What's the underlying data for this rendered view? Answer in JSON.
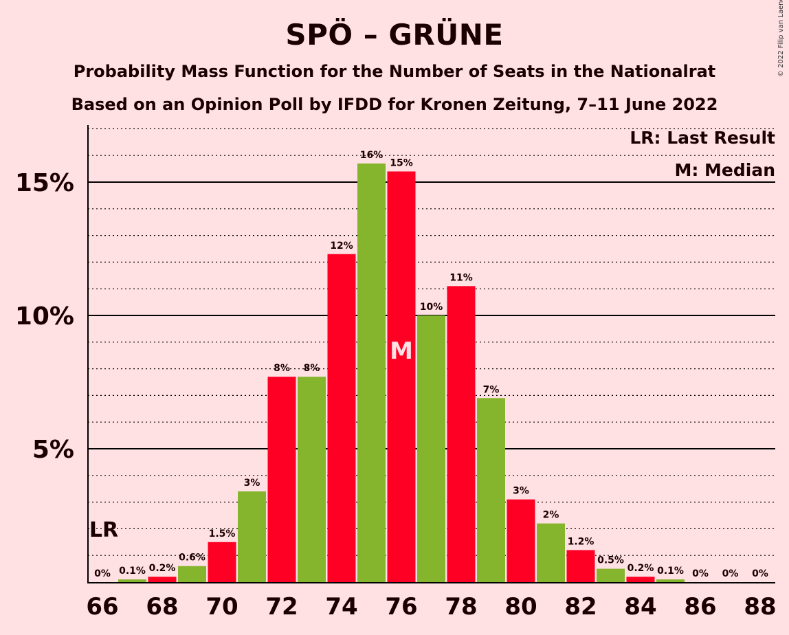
{
  "title": "SPÖ – GRÜNE",
  "subtitle1": "Probability Mass Function for the Number of Seats in the Nationalrat",
  "subtitle2": "Based on an Opinion Poll by IFDD for Kronen Zeitung, 7–11 June 2022",
  "copyright": "© 2022 Filip van Laenen",
  "legend": {
    "last_result": "LR: Last Result",
    "median": "M: Median"
  },
  "markers": {
    "last_result_label": "LR",
    "last_result_seat": 66,
    "median_label": "M",
    "median_seat": 76
  },
  "colors": {
    "red": "#ff0025",
    "green": "#85b52c",
    "background": "#ffe1e4",
    "text": "#1a0000"
  },
  "chart_data": {
    "type": "bar",
    "xlabel": "",
    "ylabel": "",
    "ylim": [
      0,
      17
    ],
    "y_ticks": [
      5,
      10,
      15
    ],
    "y_tick_labels": [
      "5%",
      "10%",
      "15%"
    ],
    "x_tick_labels": [
      "66",
      "68",
      "70",
      "72",
      "74",
      "76",
      "78",
      "80",
      "82",
      "84",
      "86",
      "88"
    ],
    "grid": "solid major lines every 5%, dotted minor lines every 1%",
    "categories": [
      66,
      67,
      68,
      69,
      70,
      71,
      72,
      73,
      74,
      75,
      76,
      77,
      78,
      79,
      80,
      81,
      82,
      83,
      84,
      85,
      86,
      87,
      88
    ],
    "values": [
      0,
      0.1,
      0.2,
      0.6,
      1.5,
      3.4,
      7.7,
      7.7,
      12.3,
      15.7,
      15.4,
      10.0,
      11.1,
      6.9,
      3.1,
      2.2,
      1.2,
      0.5,
      0.2,
      0.1,
      0,
      0,
      0
    ],
    "value_labels": [
      "0%",
      "0.1%",
      "0.2%",
      "0.6%",
      "1.5%",
      "3%",
      "8%",
      "8%",
      "12%",
      "16%",
      "15%",
      "10%",
      "11%",
      "7%",
      "3%",
      "2%",
      "1.2%",
      "0.5%",
      "0.2%",
      "0.1%",
      "0%",
      "0%",
      "0%"
    ],
    "bar_colors": [
      "red",
      "green",
      "red",
      "green",
      "red",
      "green",
      "red",
      "green",
      "red",
      "green",
      "red",
      "green",
      "red",
      "green",
      "red",
      "green",
      "red",
      "green",
      "red",
      "green",
      "red",
      "green",
      "red"
    ]
  }
}
